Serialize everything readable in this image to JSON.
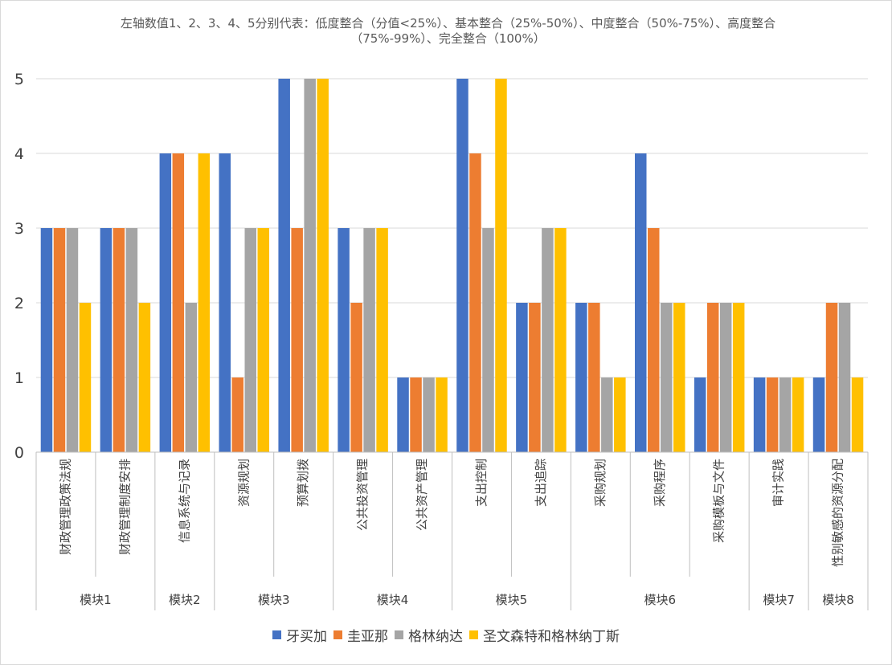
{
  "chart_data": {
    "type": "bar",
    "title": "左轴数值1、2、3、4、5分别代表：低度整合（分值<25%）、基本整合（25%-50%）、中度整合（50%-75%）、高度整合（75%-99%）、完全整合（100%）",
    "xlabel": "",
    "ylabel": "",
    "ylim": [
      0,
      5
    ],
    "yticks": [
      0,
      1,
      2,
      3,
      4,
      5
    ],
    "grid": true,
    "legend_position": "bottom",
    "categories": [
      "财政管理政策法规",
      "财政管理制度安排",
      "信息系统与记录",
      "资源规划",
      "预算划拨",
      "公共投资管理",
      "公共资产管理",
      "支出控制",
      "支出追踪",
      "采购规划",
      "采购程序",
      "采购模板与文件",
      "审计实践",
      "性别敏感的资源分配"
    ],
    "groups": [
      {
        "label": "模块1",
        "count": 2
      },
      {
        "label": "模块2",
        "count": 1
      },
      {
        "label": "模块3",
        "count": 2
      },
      {
        "label": "模块4",
        "count": 2
      },
      {
        "label": "模块5",
        "count": 2
      },
      {
        "label": "模块6",
        "count": 3
      },
      {
        "label": "模块7",
        "count": 1
      },
      {
        "label": "模块8",
        "count": 1
      }
    ],
    "series": [
      {
        "name": "牙买加",
        "color": "#4472c4",
        "values": [
          3,
          3,
          4,
          4,
          5,
          3,
          1,
          5,
          2,
          2,
          4,
          1,
          1,
          1
        ]
      },
      {
        "name": "圭亚那",
        "color": "#ed7d31",
        "values": [
          3,
          3,
          4,
          1,
          3,
          2,
          1,
          4,
          2,
          2,
          3,
          2,
          1,
          2
        ]
      },
      {
        "name": "格林纳达",
        "color": "#a5a5a5",
        "values": [
          3,
          3,
          2,
          3,
          5,
          3,
          1,
          3,
          3,
          1,
          2,
          2,
          1,
          2
        ]
      },
      {
        "name": "圣文森特和格林纳丁斯",
        "color": "#ffc000",
        "values": [
          2,
          2,
          4,
          3,
          5,
          3,
          1,
          5,
          3,
          1,
          2,
          2,
          1,
          1
        ]
      }
    ]
  }
}
